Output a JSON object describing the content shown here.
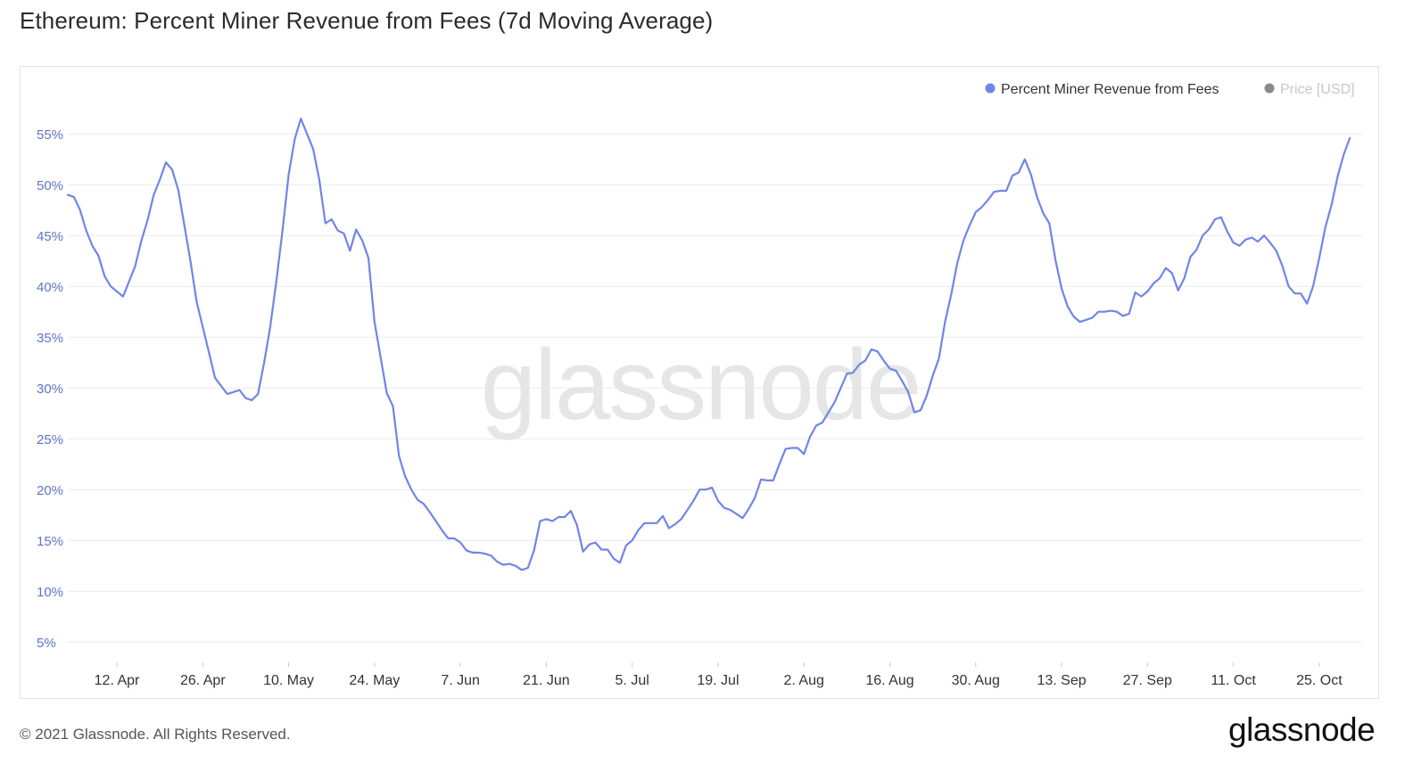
{
  "page": {
    "title": "Ethereum: Percent Miner Revenue from Fees (7d Moving Average)",
    "footer": "© 2021 Glassnode. All Rights Reserved.",
    "brand": "glassnode",
    "watermark": "glassnode"
  },
  "colors": {
    "series": "#6f86e6",
    "price_dot": "#8a8a8a",
    "price_text": "#c8c8c8",
    "grid": "#ececec",
    "tick": "#5f74c8"
  },
  "chart_data": {
    "type": "line",
    "title": "Ethereum: Percent Miner Revenue from Fees (7d Moving Average)",
    "legend": [
      {
        "name": "Percent Miner Revenue from Fees",
        "color": "#6f86e6",
        "active": true
      },
      {
        "name": "Price [USD]",
        "color": "#8a8a8a",
        "active": false
      }
    ],
    "legend_position": "top-right",
    "grid": true,
    "y_ticks": [
      "5%",
      "10%",
      "15%",
      "20%",
      "25%",
      "30%",
      "35%",
      "40%",
      "45%",
      "50%",
      "55%"
    ],
    "y_tick_values": [
      5,
      10,
      15,
      20,
      25,
      30,
      35,
      40,
      45,
      50,
      55
    ],
    "ylim": [
      3,
      58
    ],
    "x_ticks": [
      "12. Apr",
      "26. Apr",
      "10. May",
      "24. May",
      "7. Jun",
      "21. Jun",
      "5. Jul",
      "19. Jul",
      "2. Aug",
      "16. Aug",
      "30. Aug",
      "13. Sep",
      "27. Sep",
      "11. Oct",
      "25. Oct"
    ],
    "x_tick_dates": [
      "2021-04-12",
      "2021-04-26",
      "2021-05-10",
      "2021-05-24",
      "2021-06-07",
      "2021-06-21",
      "2021-07-05",
      "2021-07-19",
      "2021-08-02",
      "2021-08-16",
      "2021-08-30",
      "2021-09-13",
      "2021-09-27",
      "2021-10-11",
      "2021-10-25"
    ],
    "xlim": [
      "2021-04-04",
      "2021-11-01"
    ],
    "series": [
      {
        "name": "Percent Miner Revenue from Fees",
        "points": [
          [
            "2021-04-04",
            49.0
          ],
          [
            "2021-04-05",
            48.8
          ],
          [
            "2021-04-06",
            47.5
          ],
          [
            "2021-04-07",
            45.5
          ],
          [
            "2021-04-08",
            44.0
          ],
          [
            "2021-04-09",
            43.0
          ],
          [
            "2021-04-10",
            41.0
          ],
          [
            "2021-04-11",
            40.0
          ],
          [
            "2021-04-12",
            39.5
          ],
          [
            "2021-04-13",
            39.0
          ],
          [
            "2021-04-14",
            40.5
          ],
          [
            "2021-04-15",
            42.0
          ],
          [
            "2021-04-16",
            44.5
          ],
          [
            "2021-04-17",
            46.5
          ],
          [
            "2021-04-18",
            49.0
          ],
          [
            "2021-04-19",
            50.5
          ],
          [
            "2021-04-20",
            52.2
          ],
          [
            "2021-04-21",
            51.5
          ],
          [
            "2021-04-22",
            49.5
          ],
          [
            "2021-04-23",
            46.0
          ],
          [
            "2021-04-24",
            42.5
          ],
          [
            "2021-04-25",
            38.5
          ],
          [
            "2021-04-26",
            36.0
          ],
          [
            "2021-04-27",
            33.5
          ],
          [
            "2021-04-28",
            31.0
          ],
          [
            "2021-04-29",
            30.2
          ],
          [
            "2021-04-30",
            29.4
          ],
          [
            "2021-05-01",
            29.6
          ],
          [
            "2021-05-02",
            29.8
          ],
          [
            "2021-05-03",
            29.0
          ],
          [
            "2021-05-04",
            28.8
          ],
          [
            "2021-05-05",
            29.4
          ],
          [
            "2021-05-06",
            32.5
          ],
          [
            "2021-05-07",
            36.0
          ],
          [
            "2021-05-08",
            40.5
          ],
          [
            "2021-05-09",
            45.5
          ],
          [
            "2021-05-10",
            51.0
          ],
          [
            "2021-05-11",
            54.5
          ],
          [
            "2021-05-12",
            56.5
          ],
          [
            "2021-05-13",
            55.0
          ],
          [
            "2021-05-14",
            53.5
          ],
          [
            "2021-05-15",
            50.5
          ],
          [
            "2021-05-16",
            46.2
          ],
          [
            "2021-05-17",
            46.6
          ],
          [
            "2021-05-18",
            45.5
          ],
          [
            "2021-05-19",
            45.2
          ],
          [
            "2021-05-20",
            43.5
          ],
          [
            "2021-05-21",
            45.6
          ],
          [
            "2021-05-22",
            44.5
          ],
          [
            "2021-05-23",
            42.8
          ],
          [
            "2021-05-24",
            36.5
          ],
          [
            "2021-05-25",
            33.0
          ],
          [
            "2021-05-26",
            29.5
          ],
          [
            "2021-05-27",
            28.2
          ],
          [
            "2021-05-28",
            23.3
          ],
          [
            "2021-05-29",
            21.3
          ],
          [
            "2021-05-30",
            20.0
          ],
          [
            "2021-05-31",
            19.0
          ],
          [
            "2021-06-01",
            18.6
          ],
          [
            "2021-06-02",
            17.8
          ],
          [
            "2021-06-03",
            16.9
          ],
          [
            "2021-06-04",
            16.0
          ],
          [
            "2021-06-05",
            15.2
          ],
          [
            "2021-06-06",
            15.2
          ],
          [
            "2021-06-07",
            14.8
          ],
          [
            "2021-06-08",
            14.0
          ],
          [
            "2021-06-09",
            13.8
          ],
          [
            "2021-06-10",
            13.8
          ],
          [
            "2021-06-11",
            13.7
          ],
          [
            "2021-06-12",
            13.5
          ],
          [
            "2021-06-13",
            12.9
          ],
          [
            "2021-06-14",
            12.6
          ],
          [
            "2021-06-15",
            12.7
          ],
          [
            "2021-06-16",
            12.5
          ],
          [
            "2021-06-17",
            12.1
          ],
          [
            "2021-06-18",
            12.3
          ],
          [
            "2021-06-19",
            14.0
          ],
          [
            "2021-06-20",
            16.9
          ],
          [
            "2021-06-21",
            17.1
          ],
          [
            "2021-06-22",
            16.9
          ],
          [
            "2021-06-23",
            17.3
          ],
          [
            "2021-06-24",
            17.3
          ],
          [
            "2021-06-25",
            17.9
          ],
          [
            "2021-06-26",
            16.5
          ],
          [
            "2021-06-27",
            13.9
          ],
          [
            "2021-06-28",
            14.6
          ],
          [
            "2021-06-29",
            14.8
          ],
          [
            "2021-06-30",
            14.1
          ],
          [
            "2021-07-01",
            14.1
          ],
          [
            "2021-07-02",
            13.2
          ],
          [
            "2021-07-03",
            12.8
          ],
          [
            "2021-07-04",
            14.5
          ],
          [
            "2021-07-05",
            15.0
          ],
          [
            "2021-07-06",
            16.0
          ],
          [
            "2021-07-07",
            16.7
          ],
          [
            "2021-07-08",
            16.7
          ],
          [
            "2021-07-09",
            16.7
          ],
          [
            "2021-07-10",
            17.4
          ],
          [
            "2021-07-11",
            16.2
          ],
          [
            "2021-07-12",
            16.6
          ],
          [
            "2021-07-13",
            17.1
          ],
          [
            "2021-07-14",
            18.0
          ],
          [
            "2021-07-15",
            18.9
          ],
          [
            "2021-07-16",
            20.0
          ],
          [
            "2021-07-17",
            20.0
          ],
          [
            "2021-07-18",
            20.2
          ],
          [
            "2021-07-19",
            18.9
          ],
          [
            "2021-07-20",
            18.2
          ],
          [
            "2021-07-21",
            18.0
          ],
          [
            "2021-07-22",
            17.6
          ],
          [
            "2021-07-23",
            17.2
          ],
          [
            "2021-07-24",
            18.1
          ],
          [
            "2021-07-25",
            19.2
          ],
          [
            "2021-07-26",
            21.0
          ],
          [
            "2021-07-27",
            20.9
          ],
          [
            "2021-07-28",
            20.9
          ],
          [
            "2021-07-29",
            22.5
          ],
          [
            "2021-07-30",
            24.0
          ],
          [
            "2021-07-31",
            24.1
          ],
          [
            "2021-08-01",
            24.1
          ],
          [
            "2021-08-02",
            23.5
          ],
          [
            "2021-08-03",
            25.2
          ],
          [
            "2021-08-04",
            26.3
          ],
          [
            "2021-08-05",
            26.6
          ],
          [
            "2021-08-06",
            27.6
          ],
          [
            "2021-08-07",
            28.6
          ],
          [
            "2021-08-08",
            30.0
          ],
          [
            "2021-08-09",
            31.4
          ],
          [
            "2021-08-10",
            31.5
          ],
          [
            "2021-08-11",
            32.3
          ],
          [
            "2021-08-12",
            32.7
          ],
          [
            "2021-08-13",
            33.8
          ],
          [
            "2021-08-14",
            33.6
          ],
          [
            "2021-08-15",
            32.7
          ],
          [
            "2021-08-16",
            31.9
          ],
          [
            "2021-08-17",
            31.7
          ],
          [
            "2021-08-18",
            30.7
          ],
          [
            "2021-08-19",
            29.6
          ],
          [
            "2021-08-20",
            27.6
          ],
          [
            "2021-08-21",
            27.8
          ],
          [
            "2021-08-22",
            29.2
          ],
          [
            "2021-08-23",
            31.2
          ],
          [
            "2021-08-24",
            32.9
          ],
          [
            "2021-08-25",
            36.5
          ],
          [
            "2021-08-26",
            39.2
          ],
          [
            "2021-08-27",
            42.3
          ],
          [
            "2021-08-28",
            44.5
          ],
          [
            "2021-08-29",
            46.0
          ],
          [
            "2021-08-30",
            47.3
          ],
          [
            "2021-08-31",
            47.8
          ],
          [
            "2021-09-01",
            48.5
          ],
          [
            "2021-09-02",
            49.3
          ],
          [
            "2021-09-03",
            49.4
          ],
          [
            "2021-09-04",
            49.4
          ],
          [
            "2021-09-05",
            50.9
          ],
          [
            "2021-09-06",
            51.2
          ],
          [
            "2021-09-07",
            52.5
          ],
          [
            "2021-09-08",
            51.0
          ],
          [
            "2021-09-09",
            48.8
          ],
          [
            "2021-09-10",
            47.2
          ],
          [
            "2021-09-11",
            46.2
          ],
          [
            "2021-09-12",
            42.6
          ],
          [
            "2021-09-13",
            39.8
          ],
          [
            "2021-09-14",
            38.0
          ],
          [
            "2021-09-15",
            37.0
          ],
          [
            "2021-09-16",
            36.5
          ],
          [
            "2021-09-17",
            36.7
          ],
          [
            "2021-09-18",
            36.9
          ],
          [
            "2021-09-19",
            37.5
          ],
          [
            "2021-09-20",
            37.5
          ],
          [
            "2021-09-21",
            37.6
          ],
          [
            "2021-09-22",
            37.5
          ],
          [
            "2021-09-23",
            37.1
          ],
          [
            "2021-09-24",
            37.3
          ],
          [
            "2021-09-25",
            39.4
          ],
          [
            "2021-09-26",
            39.0
          ],
          [
            "2021-09-27",
            39.5
          ],
          [
            "2021-09-28",
            40.3
          ],
          [
            "2021-09-29",
            40.8
          ],
          [
            "2021-09-30",
            41.8
          ],
          [
            "2021-10-01",
            41.3
          ],
          [
            "2021-10-02",
            39.6
          ],
          [
            "2021-10-03",
            40.8
          ],
          [
            "2021-10-04",
            42.9
          ],
          [
            "2021-10-05",
            43.6
          ],
          [
            "2021-10-06",
            45.0
          ],
          [
            "2021-10-07",
            45.6
          ],
          [
            "2021-10-08",
            46.6
          ],
          [
            "2021-10-09",
            46.8
          ],
          [
            "2021-10-10",
            45.4
          ],
          [
            "2021-10-11",
            44.3
          ],
          [
            "2021-10-12",
            44.0
          ],
          [
            "2021-10-13",
            44.6
          ],
          [
            "2021-10-14",
            44.8
          ],
          [
            "2021-10-15",
            44.4
          ],
          [
            "2021-10-16",
            45.0
          ],
          [
            "2021-10-17",
            44.3
          ],
          [
            "2021-10-18",
            43.5
          ],
          [
            "2021-10-19",
            42.0
          ],
          [
            "2021-10-20",
            40.0
          ],
          [
            "2021-10-21",
            39.3
          ],
          [
            "2021-10-22",
            39.3
          ],
          [
            "2021-10-23",
            38.3
          ],
          [
            "2021-10-24",
            40.0
          ],
          [
            "2021-10-25",
            42.8
          ],
          [
            "2021-10-26",
            45.8
          ],
          [
            "2021-10-27",
            48.0
          ],
          [
            "2021-10-28",
            50.8
          ],
          [
            "2021-10-29",
            53.0
          ],
          [
            "2021-10-30",
            54.6
          ]
        ]
      }
    ]
  }
}
